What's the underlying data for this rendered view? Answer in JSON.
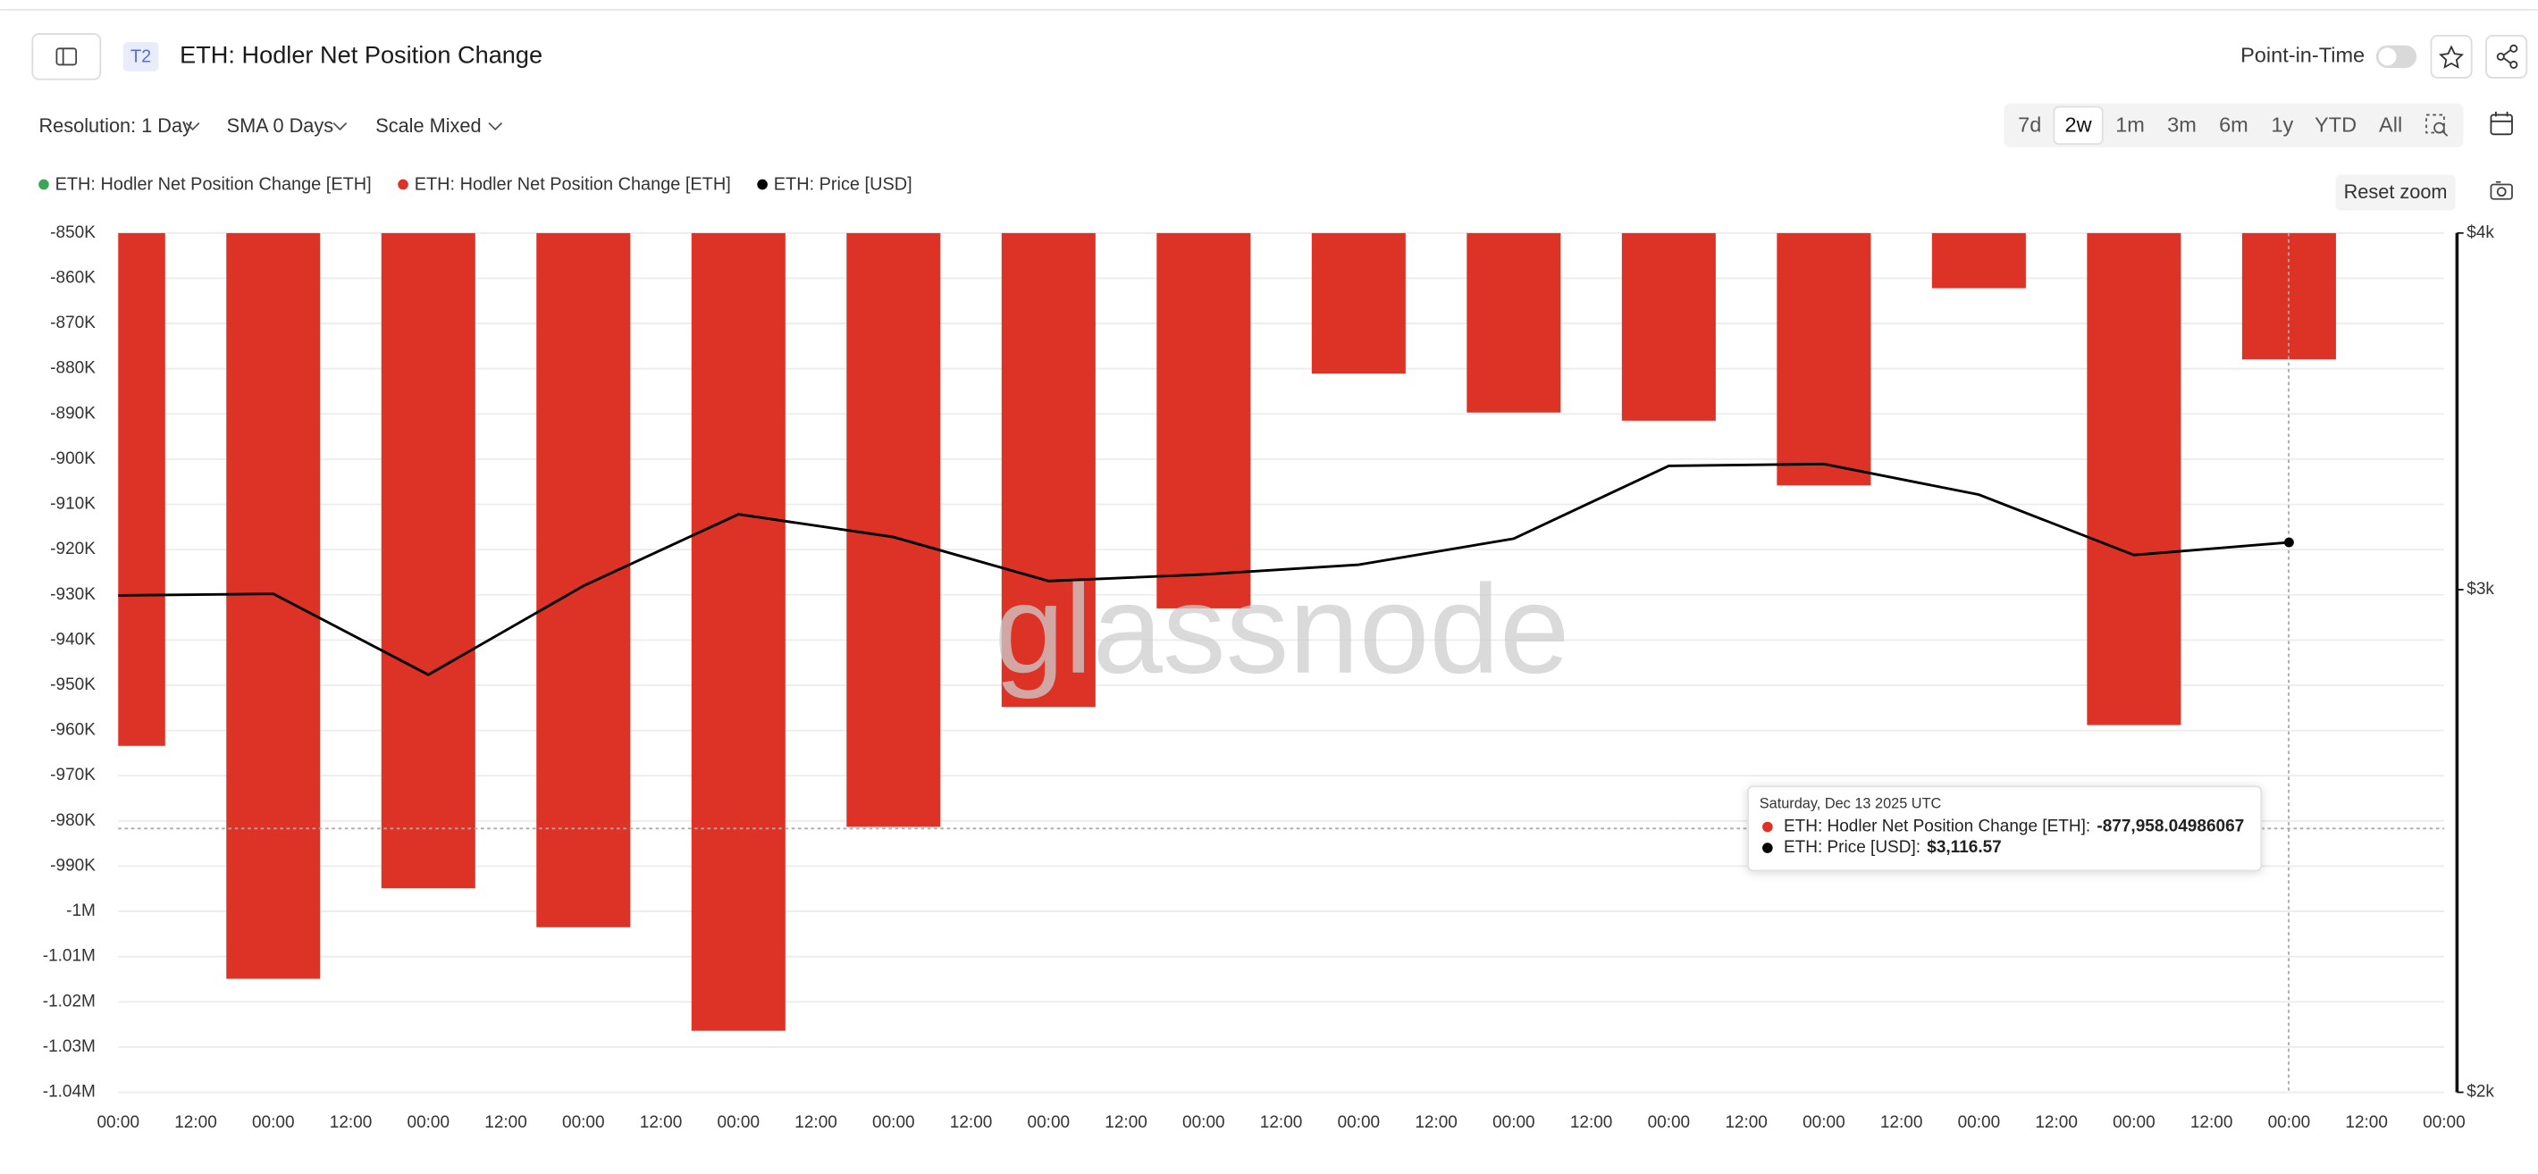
{
  "ui": {
    "badge": "T2",
    "point_in_time": "Point-in-Time",
    "resolution": "Resolution: 1 Day",
    "sma": "SMA 0 Days",
    "scale": "Scale Mixed",
    "ranges": [
      "7d",
      "2w",
      "1m",
      "3m",
      "6m",
      "1y",
      "YTD",
      "All"
    ],
    "selected_range": "2w",
    "reset_zoom": "Reset zoom"
  },
  "chart_data": {
    "type": "bar_line",
    "title": "ETH: Hodler Net Position Change",
    "watermark": "glassnode",
    "x_labels": [
      "00:00",
      "12:00",
      "00:00",
      "12:00",
      "00:00",
      "12:00",
      "00:00",
      "12:00",
      "00:00",
      "12:00",
      "00:00",
      "12:00",
      "00:00",
      "12:00",
      "00:00",
      "12:00",
      "00:00",
      "12:00",
      "00:00",
      "12:00",
      "00:00",
      "12:00",
      "00:00",
      "12:00",
      "00:00",
      "12:00",
      "00:00",
      "12:00",
      "00:00",
      "12:00",
      "00:00"
    ],
    "series": [
      {
        "name": "ETH: Hodler Net Position Change [ETH]",
        "color": "#3aa757",
        "type": "bar",
        "values": [
          null,
          null,
          null,
          null,
          null,
          null,
          null,
          null,
          null,
          null,
          null,
          null,
          null,
          null,
          null
        ]
      },
      {
        "name": "ETH: Hodler Net Position Change [ETH]",
        "color": "#dd3226",
        "type": "bar",
        "values": [
          -963400,
          -1014900,
          -994900,
          -1003500,
          -1026400,
          -981300,
          -954800,
          -933000,
          -881100,
          -889700,
          -891500,
          -905800,
          -862200,
          -958800,
          -877958.04986067
        ]
      },
      {
        "name": "ETH: Price [USD]",
        "color": "#000000",
        "type": "line",
        "axis": "y2",
        "values": [
          2986,
          2990,
          2801,
          3009,
          3188,
          3130,
          3021,
          3037,
          3061,
          3126,
          3315,
          3320,
          3239,
          3085,
          3116.57
        ]
      }
    ],
    "ylim": [
      -1040000,
      -850000
    ],
    "yticks": [
      {
        "value": -850000,
        "label": "-850K"
      },
      {
        "value": -860000,
        "label": "-860K"
      },
      {
        "value": -870000,
        "label": "-870K"
      },
      {
        "value": -880000,
        "label": "-880K"
      },
      {
        "value": -890000,
        "label": "-890K"
      },
      {
        "value": -900000,
        "label": "-900K"
      },
      {
        "value": -910000,
        "label": "-910K"
      },
      {
        "value": -920000,
        "label": "-920K"
      },
      {
        "value": -930000,
        "label": "-930K"
      },
      {
        "value": -940000,
        "label": "-940K"
      },
      {
        "value": -950000,
        "label": "-950K"
      },
      {
        "value": -960000,
        "label": "-960K"
      },
      {
        "value": -970000,
        "label": "-970K"
      },
      {
        "value": -980000,
        "label": "-980K"
      },
      {
        "value": -990000,
        "label": "-990K"
      },
      {
        "value": -1000000,
        "label": "-1M"
      },
      {
        "value": -1010000,
        "label": "-1.01M"
      },
      {
        "value": -1020000,
        "label": "-1.02M"
      },
      {
        "value": -1030000,
        "label": "-1.03M"
      },
      {
        "value": -1040000,
        "label": "-1.04M"
      }
    ],
    "y2lim": [
      2000,
      4000
    ],
    "y2_log": true,
    "y2ticks": [
      {
        "value": 2000,
        "label": "$2k"
      },
      {
        "value": 3000,
        "label": "$3k"
      },
      {
        "value": 4000,
        "label": "$4k"
      }
    ],
    "grid": true,
    "tooltip": {
      "date": "Saturday, Dec 13 2025 UTC",
      "rows": [
        {
          "label": "ETH: Hodler Net Position Change [ETH]:",
          "value_label": "-877,958.04986067",
          "color": "#dd3226"
        },
        {
          "label": "ETH: Price [USD]:",
          "value_label": "$3,116.57",
          "color": "#000000"
        }
      ]
    }
  }
}
